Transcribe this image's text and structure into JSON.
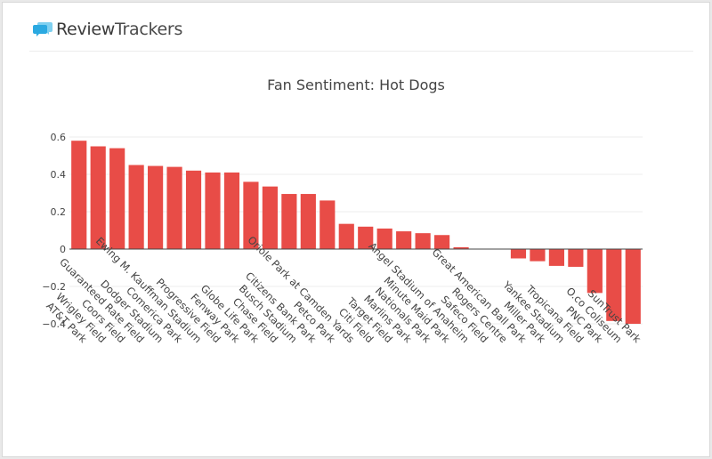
{
  "brand": {
    "name_bold": "Review",
    "name_light": "Trackers",
    "icon": "speech-bubbles-icon",
    "icon_color": "#2ba9e1"
  },
  "chart_data": {
    "type": "bar",
    "title": "Fan Sentiment: Hot Dogs",
    "xlabel": "",
    "ylabel": "",
    "ylim": [
      -0.42,
      0.62
    ],
    "yticks": [
      0.6,
      0.4,
      0.2,
      0,
      -0.2,
      -0.4
    ],
    "ytick_labels": [
      "0.6",
      "0.4",
      "0.2",
      "0",
      "−0.2",
      "−0.4"
    ],
    "bar_color": "#e84c47",
    "grid": true,
    "categories": [
      "AT&T Park",
      "Wrigley Field",
      "Coors Field",
      "Guaranteed Rate Field",
      "Dodger Stadium",
      "Comerica Park",
      "Ewing M. Kauffman Stadium",
      "Progressive Field",
      "Fenway Park",
      "Globe Life Park",
      "Chase Field",
      "Busch Stadium",
      "Citizens Bank Park",
      "Petco Park",
      "Oriole Park at Camden Yards",
      "Citi Field",
      "Target Field",
      "Marlins Park",
      "Nationals Park",
      "Minute Maid Park",
      "Angel Stadium of Anaheim",
      "Safeco Field",
      "Rogers Centre",
      "Great American Ball Park",
      "Miller Park",
      "Yankee Stadium",
      "Tropicana Field",
      "PNC Park",
      "O.co Coliseum",
      "SunTrust Park"
    ],
    "values": [
      0.58,
      0.55,
      0.54,
      0.45,
      0.445,
      0.44,
      0.42,
      0.41,
      0.41,
      0.36,
      0.335,
      0.295,
      0.295,
      0.26,
      0.135,
      0.12,
      0.11,
      0.095,
      0.085,
      0.075,
      0.01,
      0.0,
      0.0,
      -0.05,
      -0.065,
      -0.09,
      -0.095,
      -0.235,
      -0.385,
      -0.4
    ]
  }
}
